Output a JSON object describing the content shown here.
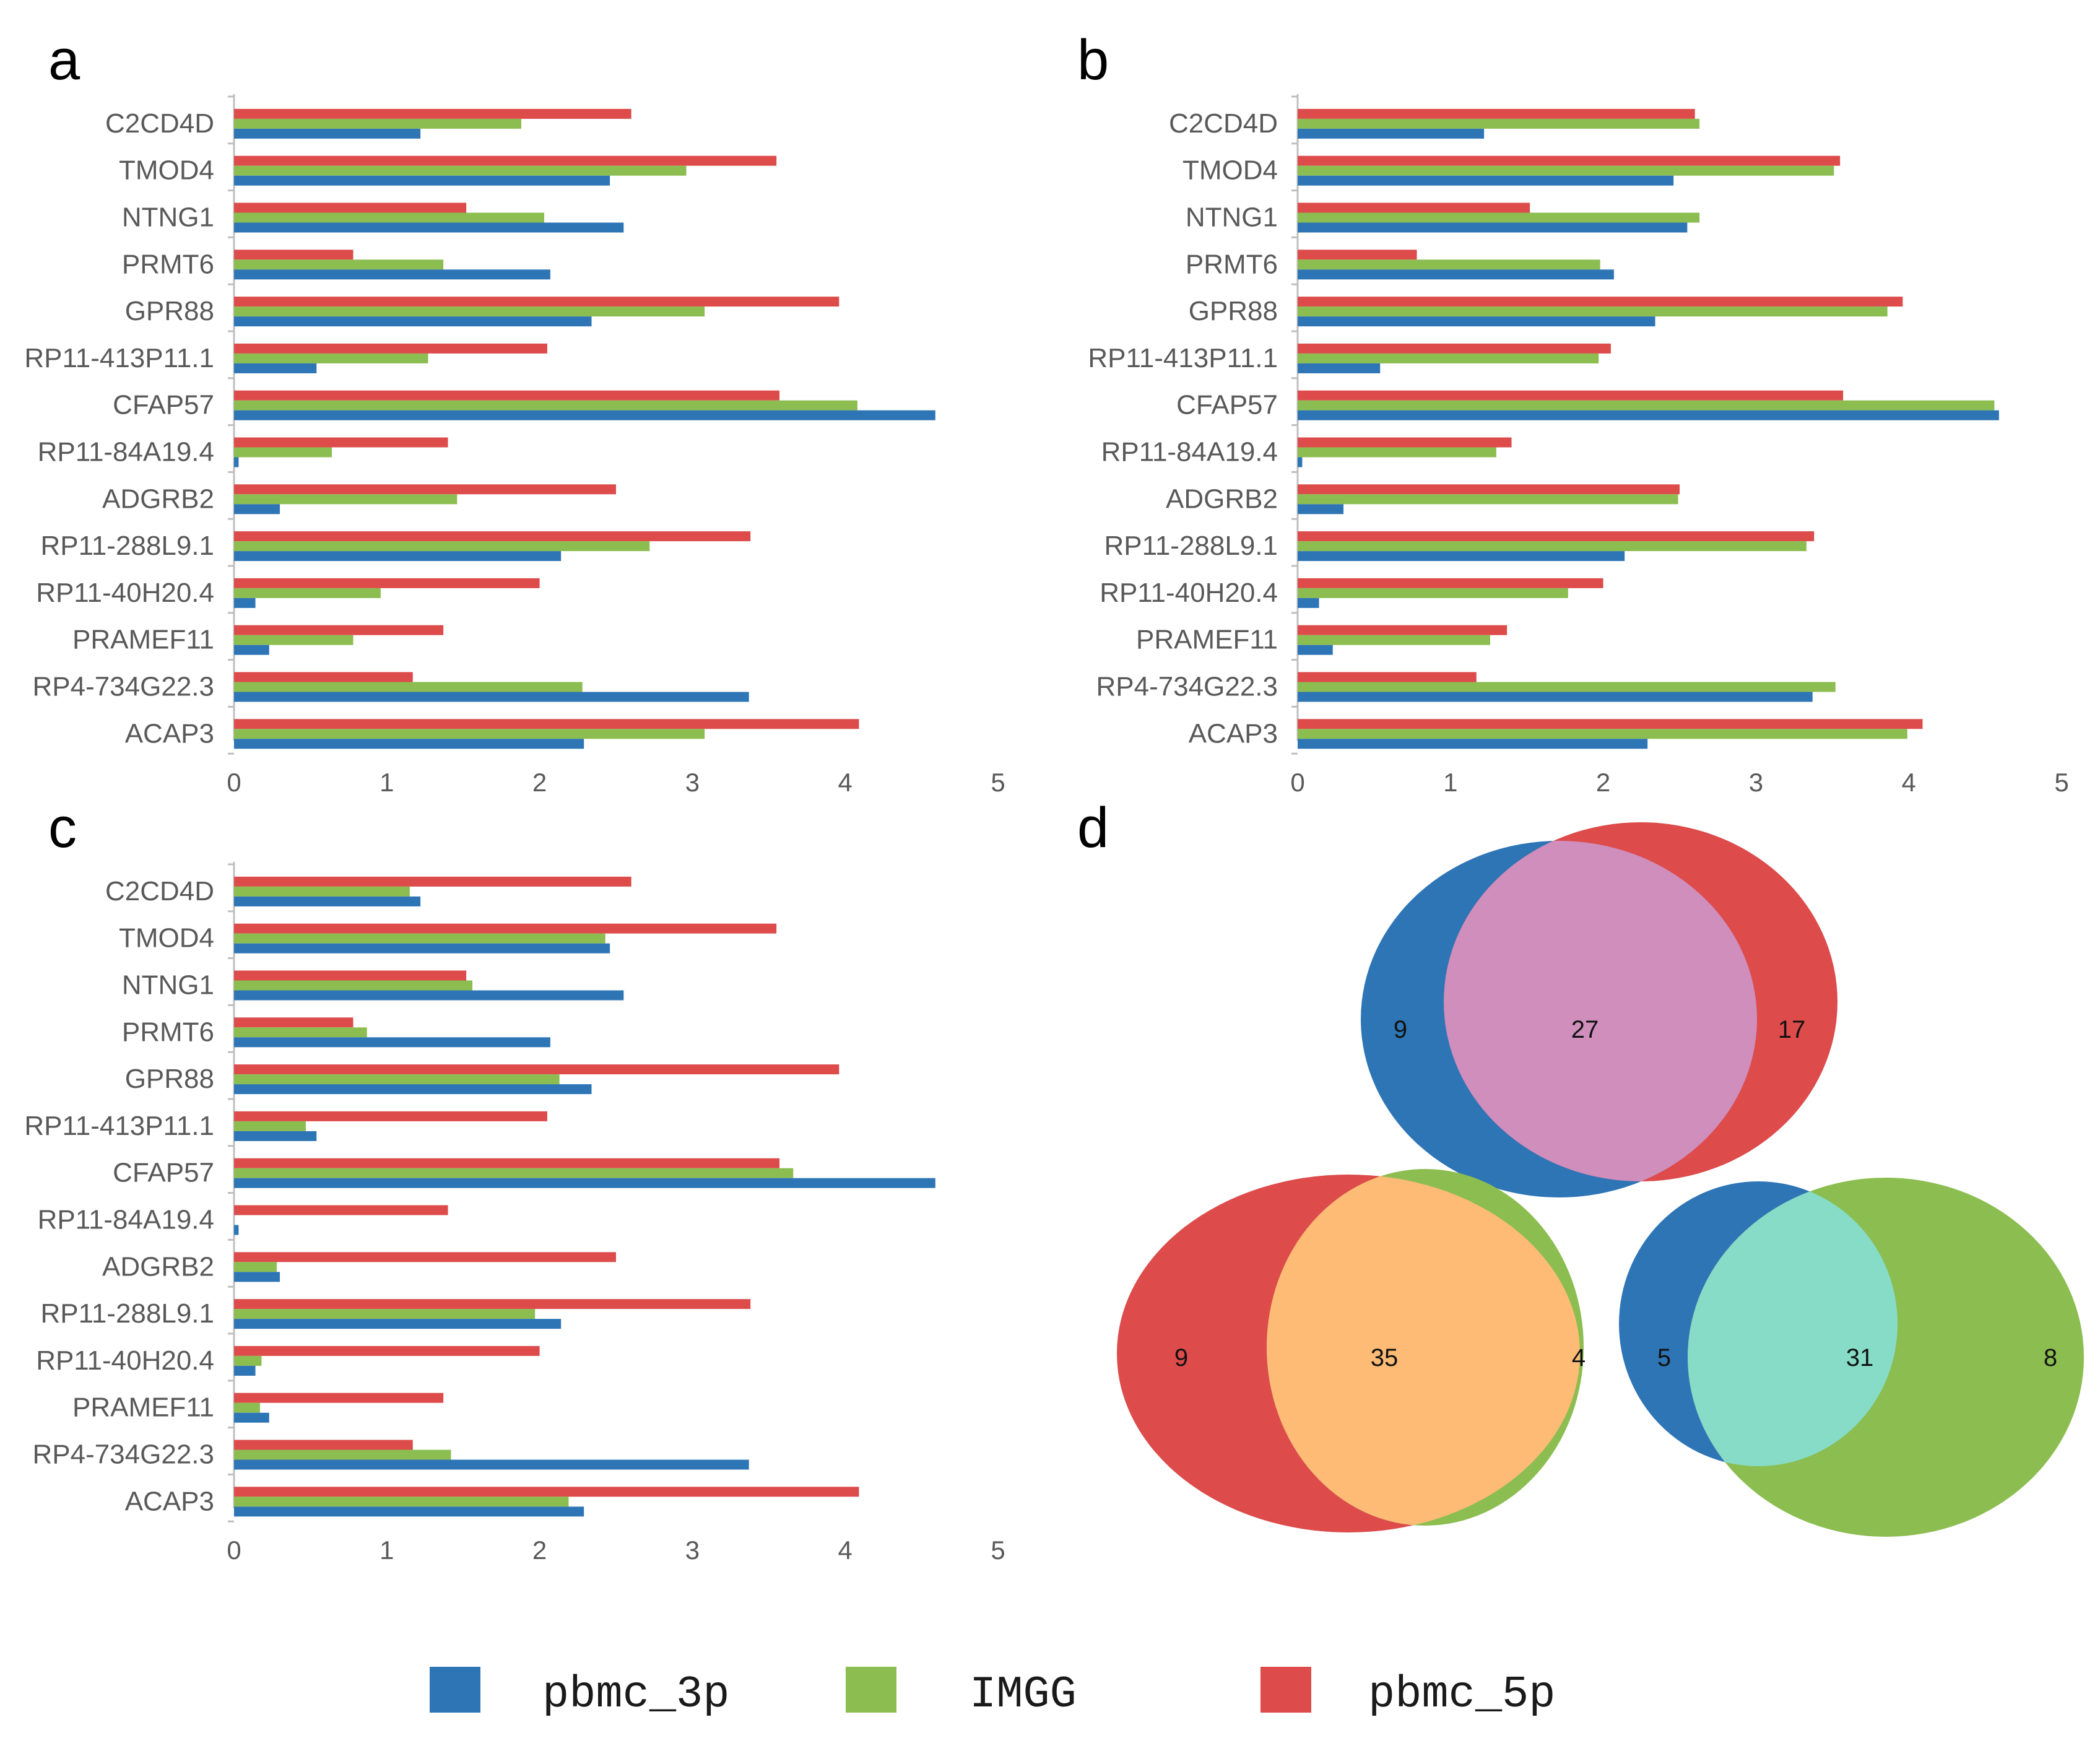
{
  "colors": {
    "pbmc_3p": "#2e75b6",
    "IMGG": "#8cbd50",
    "pbmc_5p": "#dd4b4b",
    "axis": "#bfbfbf",
    "venn_overlap_1": "#cf8ebc",
    "venn_overlap_2": "#fdbb76",
    "venn_overlap_3": "#86dcc6"
  },
  "legend": [
    {
      "name": "pbmc_3p",
      "color": "#2e75b6"
    },
    {
      "name": "IMGG",
      "color": "#8cbd50"
    },
    {
      "name": "pbmc_5p",
      "color": "#dd4b4b"
    }
  ],
  "chart_data": [
    {
      "panel": "a",
      "type": "bar",
      "orientation": "horizontal",
      "categories": [
        "C2CD4D",
        "TMOD4",
        "NTNG1",
        "PRMT6",
        "GPR88",
        "RP11-413P11.1",
        "CFAP57",
        "RP11-84A19.4",
        "ADGRB2",
        "RP11-288L9.1",
        "RP11-40H20.4",
        "PRAMEF11",
        "RP4-734G22.3",
        "ACAP3"
      ],
      "xlim": [
        0,
        5
      ],
      "ticks": [
        "0",
        "1",
        "2",
        "3",
        "4",
        "5"
      ],
      "series": [
        {
          "name": "pbmc_5p",
          "values": [
            2.6,
            3.55,
            1.52,
            0.78,
            3.96,
            2.05,
            3.57,
            1.4,
            2.5,
            3.38,
            2.0,
            1.37,
            1.17,
            4.09
          ]
        },
        {
          "name": "IMGG",
          "values": [
            1.88,
            2.96,
            2.03,
            1.37,
            3.08,
            1.27,
            4.08,
            0.64,
            1.46,
            2.72,
            0.96,
            0.78,
            2.28,
            3.08
          ]
        },
        {
          "name": "pbmc_3p",
          "values": [
            1.22,
            2.46,
            2.55,
            2.07,
            2.34,
            0.54,
            4.59,
            0.03,
            0.3,
            2.14,
            0.14,
            0.23,
            3.37,
            2.29
          ]
        }
      ]
    },
    {
      "panel": "b",
      "type": "bar",
      "orientation": "horizontal",
      "categories": [
        "C2CD4D",
        "TMOD4",
        "NTNG1",
        "PRMT6",
        "GPR88",
        "RP11-413P11.1",
        "CFAP57",
        "RP11-84A19.4",
        "ADGRB2",
        "RP11-288L9.1",
        "RP11-40H20.4",
        "PRAMEF11",
        "RP4-734G22.3",
        "ACAP3"
      ],
      "xlim": [
        0,
        5
      ],
      "ticks": [
        "0",
        "1",
        "2",
        "3",
        "4",
        "5"
      ],
      "series": [
        {
          "name": "pbmc_5p",
          "values": [
            2.6,
            3.55,
            1.52,
            0.78,
            3.96,
            2.05,
            3.57,
            1.4,
            2.5,
            3.38,
            2.0,
            1.37,
            1.17,
            4.09
          ]
        },
        {
          "name": "IMGG",
          "values": [
            2.63,
            3.51,
            2.63,
            1.98,
            3.86,
            1.97,
            4.56,
            1.3,
            2.49,
            3.33,
            1.77,
            1.26,
            3.52,
            3.99
          ]
        },
        {
          "name": "pbmc_3p",
          "values": [
            1.22,
            2.46,
            2.55,
            2.07,
            2.34,
            0.54,
            4.59,
            0.03,
            0.3,
            2.14,
            0.14,
            0.23,
            3.37,
            2.29
          ]
        }
      ]
    },
    {
      "panel": "c",
      "type": "bar",
      "orientation": "horizontal",
      "categories": [
        "C2CD4D",
        "TMOD4",
        "NTNG1",
        "PRMT6",
        "GPR88",
        "RP11-413P11.1",
        "CFAP57",
        "RP11-84A19.4",
        "ADGRB2",
        "RP11-288L9.1",
        "RP11-40H20.4",
        "PRAMEF11",
        "RP4-734G22.3",
        "ACAP3"
      ],
      "xlim": [
        0,
        5
      ],
      "ticks": [
        "0",
        "1",
        "2",
        "3",
        "4",
        "5"
      ],
      "series": [
        {
          "name": "pbmc_5p",
          "values": [
            2.6,
            3.55,
            1.52,
            0.78,
            3.96,
            2.05,
            3.57,
            1.4,
            2.5,
            3.38,
            2.0,
            1.37,
            1.17,
            4.09
          ]
        },
        {
          "name": "IMGG",
          "values": [
            1.15,
            2.43,
            1.56,
            0.87,
            2.13,
            0.47,
            3.66,
            0.0,
            0.28,
            1.97,
            0.18,
            0.17,
            1.42,
            2.19
          ]
        },
        {
          "name": "pbmc_3p",
          "values": [
            1.22,
            2.46,
            2.55,
            2.07,
            2.34,
            0.54,
            4.59,
            0.03,
            0.3,
            2.14,
            0.14,
            0.23,
            3.37,
            2.29
          ]
        }
      ]
    }
  ],
  "venn": {
    "panel": "d",
    "diagrams": [
      {
        "left": "pbmc_3p",
        "right": "pbmc_5p",
        "left_only": "9",
        "overlap": "27",
        "right_only": "17"
      },
      {
        "left": "pbmc_5p",
        "right": "IMGG",
        "left_only": "9",
        "overlap": "35",
        "right_only": "4"
      },
      {
        "left": "pbmc_3p",
        "right": "IMGG",
        "left_only": "5",
        "overlap": "31",
        "right_only": "8"
      }
    ]
  }
}
